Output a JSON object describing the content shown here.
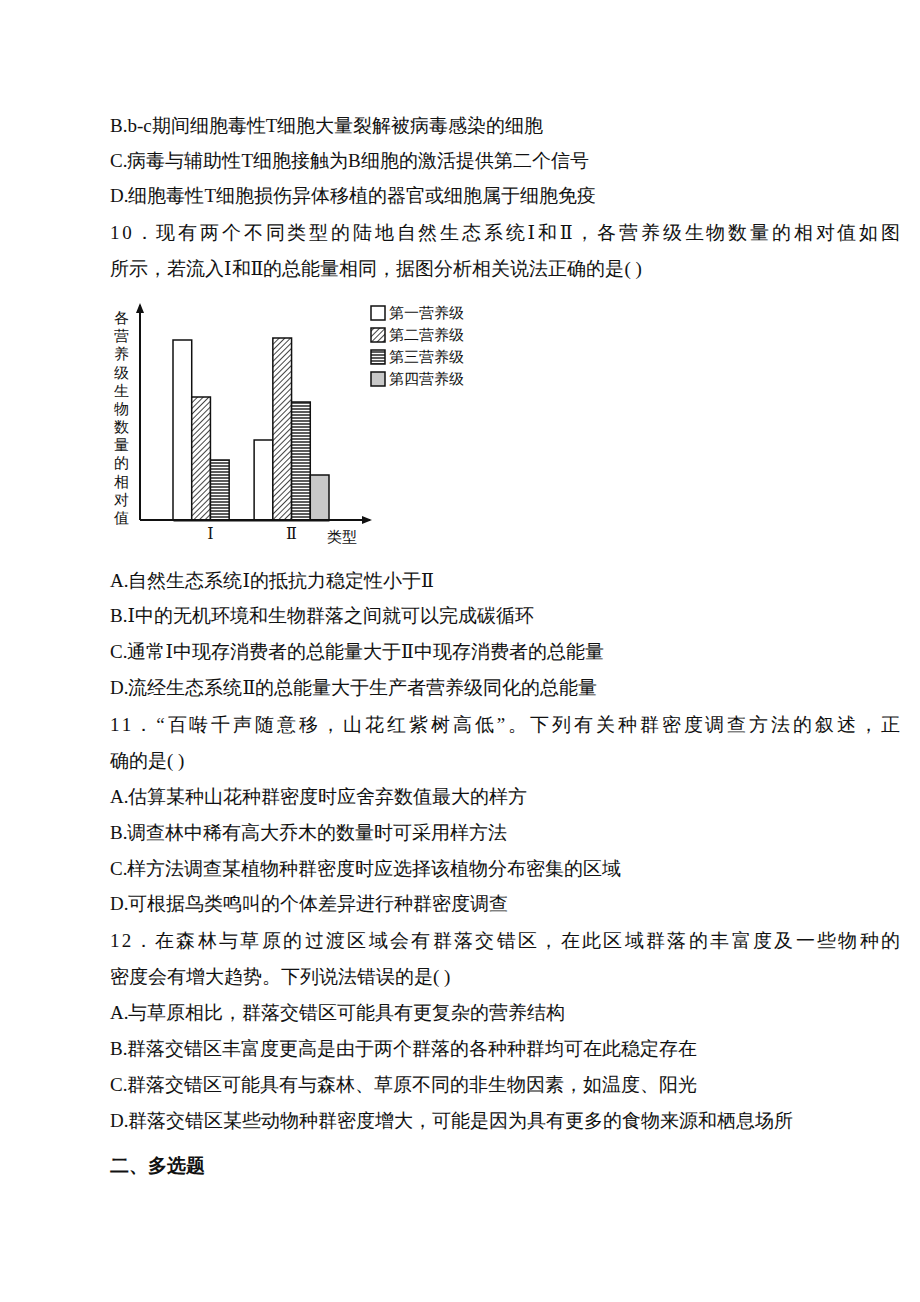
{
  "page": {
    "lines_top": [
      "B.b-c期间细胞毒性T细胞大量裂解被病毒感染的细胞",
      "C.病毒与辅助性T细胞接触为B细胞的激活提供第二个信号",
      "D.细胞毒性T细胞损伤异体移植的器官或细胞属于细胞免疫"
    ],
    "q10": {
      "stem": [
        "10．现有两个不同类型的陆地自然生态系统Ⅰ和Ⅱ，各营养级生物数量的相对值如图",
        "所示，若流入Ⅰ和Ⅱ的总能量相同，据图分析相关说法正确的是(    )"
      ],
      "options": [
        "A.自然生态系统Ⅰ的抵抗力稳定性小于Ⅱ",
        "B.Ⅰ中的无机环境和生物群落之间就可以完成碳循环",
        "C.通常Ⅰ中现存消费者的总能量大于Ⅱ中现存消费者的总能量",
        "D.流经生态系统Ⅱ的总能量大于生产者营养级同化的总能量"
      ]
    },
    "q11": {
      "stem": [
        "11．“百啭千声随意移，山花红紫树高低”。下列有关种群密度调查方法的叙述，正",
        "确的是(    )"
      ],
      "options": [
        "A.估算某种山花种群密度时应舍弃数值最大的样方",
        "B.调查林中稀有高大乔木的数量时可采用样方法",
        "C.样方法调查某植物种群密度时应选择该植物分布密集的区域",
        "D.可根据鸟类鸣叫的个体差异进行种群密度调查"
      ]
    },
    "q12": {
      "stem": [
        "12．在森林与草原的过渡区域会有群落交错区，在此区域群落的丰富度及一些物种的",
        "密度会有增大趋势。下列说法错误的是(    )"
      ],
      "options": [
        "A.与草原相比，群落交错区可能具有更复杂的营养结构",
        "B.群落交错区丰富度更高是由于两个群落的各种种群均可在此稳定存在",
        "C.群落交错区可能具有与森林、草原不同的非生物因素，如温度、阳光",
        "D.群落交错区某些动物种群密度增大，可能是因为具有更多的食物来源和栖息场所"
      ]
    },
    "section_heading": "二、多选题"
  },
  "chart_data": {
    "type": "bar",
    "x_label": "类型",
    "y_label": "各营养级生物数量的相对值",
    "categories": [
      "Ⅰ",
      "Ⅱ"
    ],
    "series": [
      {
        "name": "第一营养级",
        "color": "#ffffff",
        "values": [
          180,
          80
        ]
      },
      {
        "name": "第二营养级",
        "color": "#444444",
        "values": [
          123,
          182
        ]
      },
      {
        "name": "第三营养级",
        "color": "#333333",
        "values": [
          60,
          118
        ]
      },
      {
        "name": "第四营养级",
        "color": "#c8c8c8",
        "values": [
          null,
          45
        ]
      }
    ],
    "ylim": [
      0,
      215
    ],
    "tick_labels": "x",
    "legend": "upper right"
  }
}
